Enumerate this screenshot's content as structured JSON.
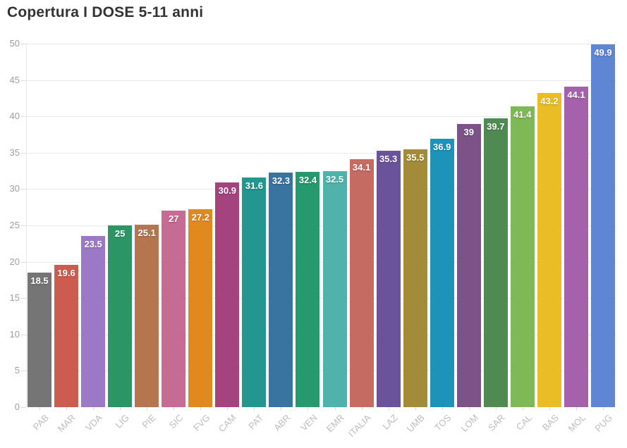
{
  "title": "Copertura I DOSE 5-11 anni",
  "chart_data": {
    "type": "bar",
    "title": "Copertura I DOSE 5-11 anni",
    "categories": [
      "PAB",
      "MAR",
      "VDA",
      "LIG",
      "PIE",
      "SIC",
      "FVG",
      "CAM",
      "PAT",
      "ABR",
      "VEN",
      "EMR",
      "ITALIA",
      "LAZ",
      "UMB",
      "TOS",
      "LOM",
      "SAR",
      "CAL",
      "BAS",
      "MOL",
      "PUG"
    ],
    "values": [
      18.5,
      19.6,
      23.5,
      25,
      25.1,
      27,
      27.2,
      30.9,
      31.6,
      32.3,
      32.4,
      32.5,
      34.1,
      35.3,
      35.5,
      36.9,
      39,
      39.7,
      41.4,
      43.2,
      44.1,
      49.9
    ],
    "value_labels": [
      "18.5",
      "19.6",
      "23.5",
      "25",
      "25.1",
      "27",
      "27.2",
      "30.9",
      "31.6",
      "32.3",
      "32.4",
      "32.5",
      "34.1",
      "35.3",
      "35.5",
      "36.9",
      "39",
      "39.7",
      "41.4",
      "43.2",
      "44.1",
      "49.9"
    ],
    "bar_colors": [
      "#757575",
      "#cc5c50",
      "#9c79c6",
      "#2b9566",
      "#b5764f",
      "#c66b94",
      "#e2891e",
      "#a4447f",
      "#23968f",
      "#38749f",
      "#27996f",
      "#4fb3ab",
      "#c56b62",
      "#6b539b",
      "#a28b39",
      "#1e93ba",
      "#7c5387",
      "#4f8a52",
      "#7fb857",
      "#eabc26",
      "#a661ad",
      "#5f86d4"
    ],
    "ylim": [
      0,
      50
    ],
    "yticks": [
      0,
      5,
      10,
      15,
      20,
      25,
      30,
      35,
      40,
      45,
      50
    ],
    "ytick_labels": [
      "0",
      "5",
      "10",
      "15",
      "20",
      "25",
      "30",
      "35",
      "40",
      "45",
      "50"
    ],
    "grid": true,
    "legend": false,
    "value_label_position": "inside-top",
    "style": {
      "title_color": "#333333",
      "grid_color": "#e9e9e9",
      "axis_line_color": "#e6e6e6",
      "tick_color": "#dddddd",
      "y_label_color": "#9e9e9e",
      "x_label_color": "#bdbdbd",
      "value_label_color": "#ffffff",
      "background_color": "#ffffff"
    }
  }
}
